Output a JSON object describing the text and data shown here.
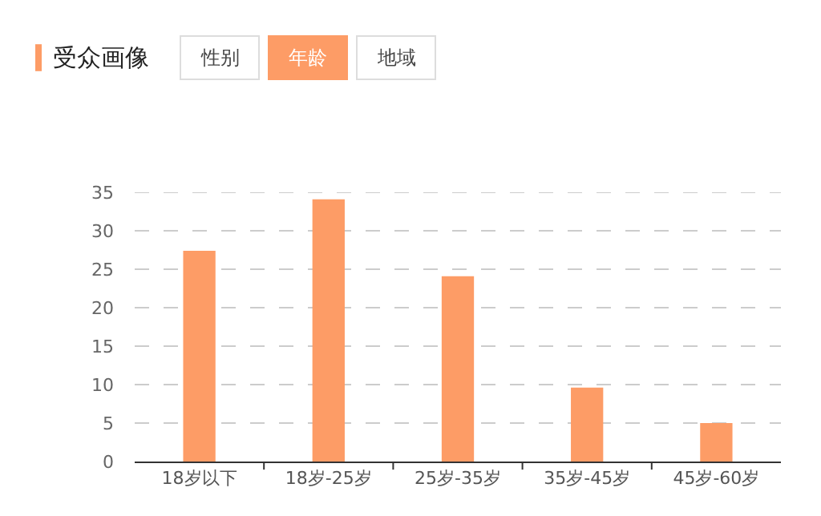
{
  "chart_data": {
    "type": "bar",
    "title": "受众画像",
    "annotations": [
      "性别",
      "年龄",
      "地域"
    ],
    "categories": [
      "18岁以下",
      "18岁-25岁",
      "25岁-35岁",
      "35岁-45岁",
      "45岁-60岁"
    ],
    "values": [
      27.4,
      34.1,
      24.1,
      9.6,
      5.0
    ],
    "color": "#fd9c66",
    "ylim": [
      0,
      35
    ],
    "yticks": [
      0,
      5,
      10,
      15,
      20,
      25,
      30,
      35
    ],
    "grid": "y"
  }
}
